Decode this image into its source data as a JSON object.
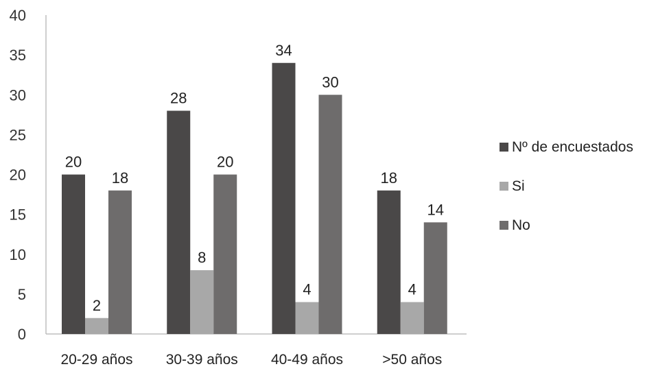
{
  "chart_data": {
    "type": "bar",
    "title": "",
    "xlabel": "",
    "ylabel": "",
    "ylim": [
      0,
      40
    ],
    "yticks": [
      0,
      5,
      10,
      15,
      20,
      25,
      30,
      35,
      40
    ],
    "categories": [
      "20-29 años",
      "30-39 años",
      "40-49 años",
      ">50 años"
    ],
    "series": [
      {
        "name": "Nº de encuestados",
        "values": [
          20,
          28,
          34,
          18
        ],
        "color": "#4a4848"
      },
      {
        "name": "Si",
        "values": [
          2,
          8,
          4,
          4
        ],
        "color": "#a8a8a8"
      },
      {
        "name": "No",
        "values": [
          18,
          20,
          30,
          14
        ],
        "color": "#6e6c6c"
      }
    ],
    "grid": false,
    "legend_position": "right"
  }
}
